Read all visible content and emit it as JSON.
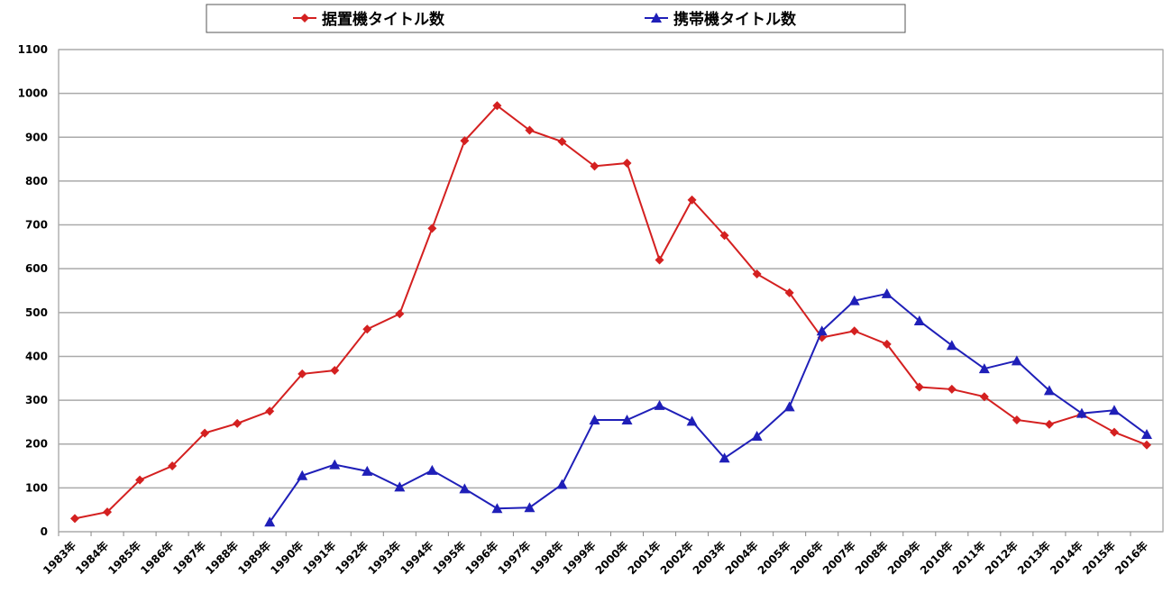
{
  "chart_data": {
    "type": "line",
    "categories": [
      "1983年",
      "1984年",
      "1985年",
      "1986年",
      "1987年",
      "1988年",
      "1989年",
      "1990年",
      "1991年",
      "1992年",
      "1993年",
      "1994年",
      "1995年",
      "1996年",
      "1997年",
      "1998年",
      "1999年",
      "2000年",
      "2001年",
      "2002年",
      "2003年",
      "2004年",
      "2005年",
      "2006年",
      "2007年",
      "2008年",
      "2009年",
      "2010年",
      "2011年",
      "2012年",
      "2013年",
      "2014年",
      "2015年",
      "2016年"
    ],
    "series": [
      {
        "name": "据置機タイトル数",
        "color": "#d42020",
        "marker": "diamond",
        "values": [
          30,
          45,
          118,
          150,
          225,
          247,
          275,
          360,
          368,
          462,
          497,
          692,
          892,
          972,
          916,
          890,
          834,
          841,
          620,
          757,
          676,
          588,
          545,
          443,
          458,
          428,
          330,
          325,
          308,
          255,
          245,
          268,
          227,
          198
        ]
      },
      {
        "name": "携帯機タイトル数",
        "color": "#1f1fb8",
        "marker": "triangle",
        "values": [
          null,
          null,
          null,
          null,
          null,
          null,
          22,
          128,
          153,
          138,
          102,
          140,
          98,
          53,
          55,
          108,
          255,
          255,
          288,
          252,
          168,
          218,
          285,
          458,
          527,
          543,
          481,
          425,
          372,
          390,
          322,
          270,
          277,
          222
        ]
      }
    ],
    "ylim": [
      0,
      1100
    ],
    "yticks": [
      0,
      100,
      200,
      300,
      400,
      500,
      600,
      700,
      800,
      900,
      1000,
      1100
    ],
    "grid": true
  }
}
